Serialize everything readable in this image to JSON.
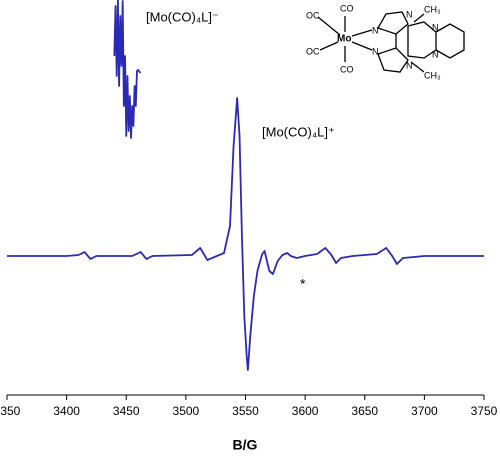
{
  "chart_data": {
    "type": "line",
    "xlabel": "B/G",
    "xlim": [
      3350,
      3750
    ],
    "xticks": [
      3350,
      3400,
      3450,
      3500,
      3550,
      3600,
      3650,
      3700,
      3750
    ],
    "ylim": [
      -139,
      256
    ],
    "series": [
      {
        "color": "#2a2ab4",
        "x": [
          3350,
          3400,
          3410,
          3415,
          3420,
          3425,
          3455,
          3462,
          3467,
          3472,
          3505,
          3512,
          3518,
          3524,
          3532,
          3537,
          3540,
          3543,
          3545,
          3547,
          3549,
          3551,
          3552,
          3554,
          3557,
          3560,
          3564,
          3566,
          3570,
          3573,
          3577,
          3581,
          3585,
          3588,
          3593,
          3600,
          3610,
          3617,
          3622,
          3626,
          3630,
          3640,
          3660,
          3668,
          3673,
          3677,
          3682,
          3700,
          3750
        ],
        "values": [
          0,
          0,
          1,
          4,
          -3,
          0,
          0,
          4,
          -3,
          0,
          1,
          8,
          -4,
          -1,
          3,
          30,
          110,
          158,
          120,
          20,
          -60,
          -100,
          -114,
          -80,
          -40,
          -15,
          2,
          5,
          -15,
          -18,
          -5,
          1,
          3,
          0,
          -2,
          0,
          2,
          8,
          1,
          -7,
          -2,
          0,
          2,
          8,
          0,
          -8,
          -2,
          0,
          0
        ]
      },
      {
        "color": "#2a2ab4",
        "x": [
          3440,
          3441,
          3442,
          3443,
          3444,
          3445,
          3446,
          3447,
          3448,
          3449,
          3450,
          3451,
          3452,
          3453,
          3454,
          3455,
          3456,
          3457,
          3458,
          3459,
          3460,
          3462
        ],
        "values": [
          200,
          250,
          180,
          256,
          170,
          240,
          190,
          255,
          150,
          200,
          120,
          180,
          125,
          160,
          118,
          150,
          130,
          170,
          150,
          185,
          186,
          183
        ]
      }
    ],
    "annotations": [
      "[Mo(CO)₄L]⁻",
      "[Mo(CO)₄L]⁺",
      "*"
    ],
    "structure_labels": [
      "OC",
      "CO",
      "OC",
      "CO",
      "Mo",
      "N",
      "N",
      "N",
      "N",
      "N",
      "N",
      "CH₃",
      "CH₃"
    ]
  }
}
